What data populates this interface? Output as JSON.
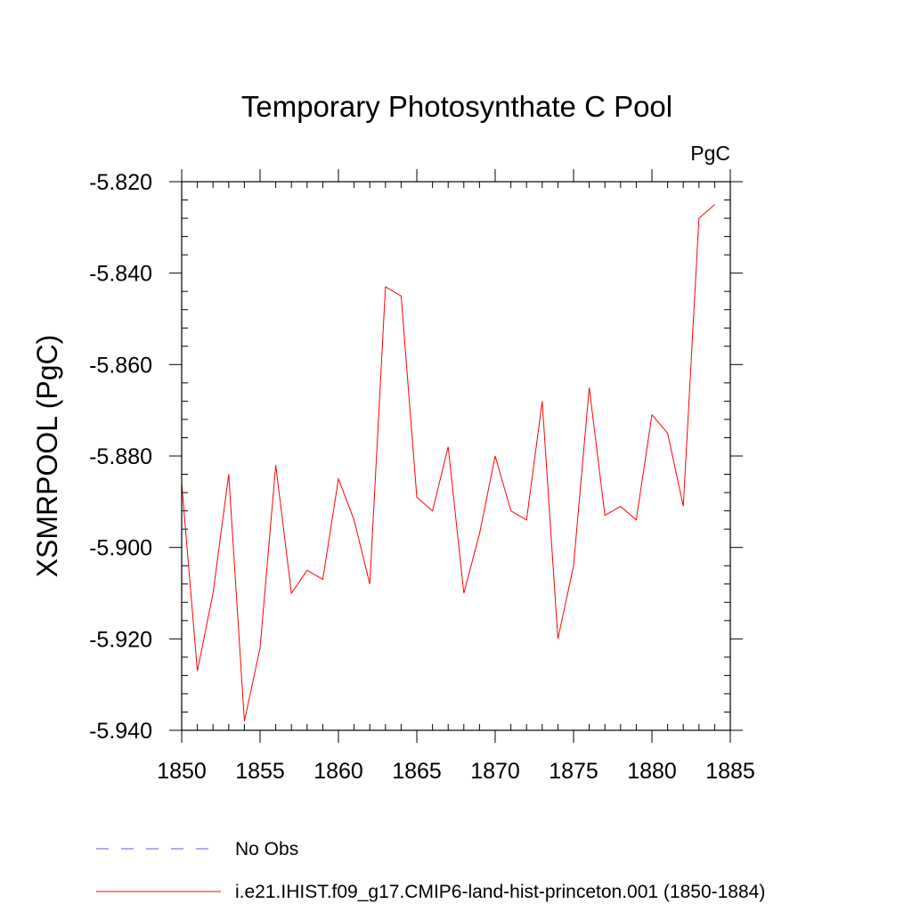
{
  "chart_data": {
    "type": "line",
    "title": "Temporary Photosynthate C Pool",
    "units_label": "PgC",
    "ylabel": "XSMRPOOL  (PgC)",
    "xlabel": "",
    "xlim": [
      1850,
      1885
    ],
    "ylim": [
      -5.94,
      -5.82
    ],
    "x_ticks": [
      "1850",
      "1855",
      "1860",
      "1865",
      "1870",
      "1875",
      "1880",
      "1885"
    ],
    "y_ticks": [
      "-5.820",
      "-5.840",
      "-5.860",
      "-5.880",
      "-5.900",
      "-5.920",
      "-5.940"
    ],
    "grid": false,
    "legend_position": "bottom-left",
    "x": [
      1850,
      1851,
      1852,
      1853,
      1854,
      1855,
      1856,
      1857,
      1858,
      1859,
      1860,
      1861,
      1862,
      1863,
      1864,
      1865,
      1866,
      1867,
      1868,
      1869,
      1870,
      1871,
      1872,
      1873,
      1874,
      1875,
      1876,
      1877,
      1878,
      1879,
      1880,
      1881,
      1882,
      1883,
      1884
    ],
    "series": [
      {
        "name": "i.e21.IHIST.f09_g17.CMIP6-land-hist-princeton.001 (1850-1884)",
        "color": "#ff0000",
        "style": "solid",
        "values": [
          -5.886,
          -5.927,
          -5.91,
          -5.884,
          -5.938,
          -5.922,
          -5.882,
          -5.91,
          -5.905,
          -5.907,
          -5.885,
          -5.894,
          -5.908,
          -5.843,
          -5.845,
          -5.889,
          -5.892,
          -5.878,
          -5.91,
          -5.897,
          -5.88,
          -5.892,
          -5.894,
          -5.868,
          -5.92,
          -5.904,
          -5.865,
          -5.893,
          -5.891,
          -5.894,
          -5.871,
          -5.875,
          -5.891,
          -5.828,
          -5.825
        ]
      }
    ],
    "reference": {
      "name": "No Obs",
      "color": "#6a5acd",
      "style": "dashed"
    }
  }
}
